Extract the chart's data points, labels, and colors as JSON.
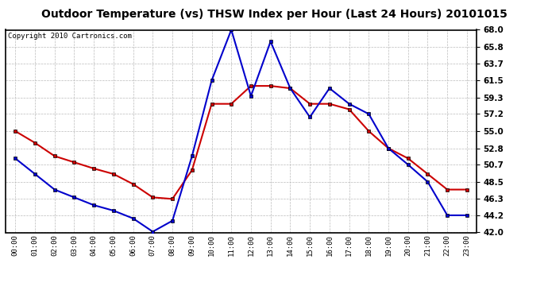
{
  "title": "Outdoor Temperature (vs) THSW Index per Hour (Last 24 Hours) 20101015",
  "copyright": "Copyright 2010 Cartronics.com",
  "hours": [
    "00:00",
    "01:00",
    "02:00",
    "03:00",
    "04:00",
    "05:00",
    "06:00",
    "07:00",
    "08:00",
    "09:00",
    "10:00",
    "11:00",
    "12:00",
    "13:00",
    "14:00",
    "15:00",
    "16:00",
    "17:00",
    "18:00",
    "19:00",
    "20:00",
    "21:00",
    "22:00",
    "23:00"
  ],
  "red_temp": [
    55.0,
    53.5,
    51.8,
    51.0,
    50.2,
    49.5,
    48.2,
    46.5,
    46.3,
    50.0,
    58.5,
    58.5,
    60.8,
    60.8,
    60.5,
    58.5,
    58.5,
    57.8,
    55.0,
    52.8,
    51.5,
    49.5,
    47.5,
    47.5
  ],
  "blue_thsw": [
    51.5,
    49.5,
    47.5,
    46.5,
    45.5,
    44.8,
    43.8,
    42.1,
    43.5,
    51.8,
    61.5,
    68.0,
    59.5,
    66.5,
    60.5,
    56.8,
    60.5,
    58.5,
    57.2,
    52.8,
    50.7,
    48.5,
    44.2,
    44.2
  ],
  "ylim": [
    42.0,
    68.0
  ],
  "yticks": [
    42.0,
    44.2,
    46.3,
    48.5,
    50.7,
    52.8,
    55.0,
    57.2,
    59.3,
    61.5,
    63.7,
    65.8,
    68.0
  ],
  "red_color": "#cc0000",
  "blue_color": "#0000cc",
  "bg_color": "#ffffff",
  "plot_bg_color": "#ffffff",
  "grid_color": "#bbbbbb",
  "title_fontsize": 10,
  "copyright_fontsize": 6.5,
  "marker": "s",
  "marker_size": 3,
  "line_width": 1.5
}
